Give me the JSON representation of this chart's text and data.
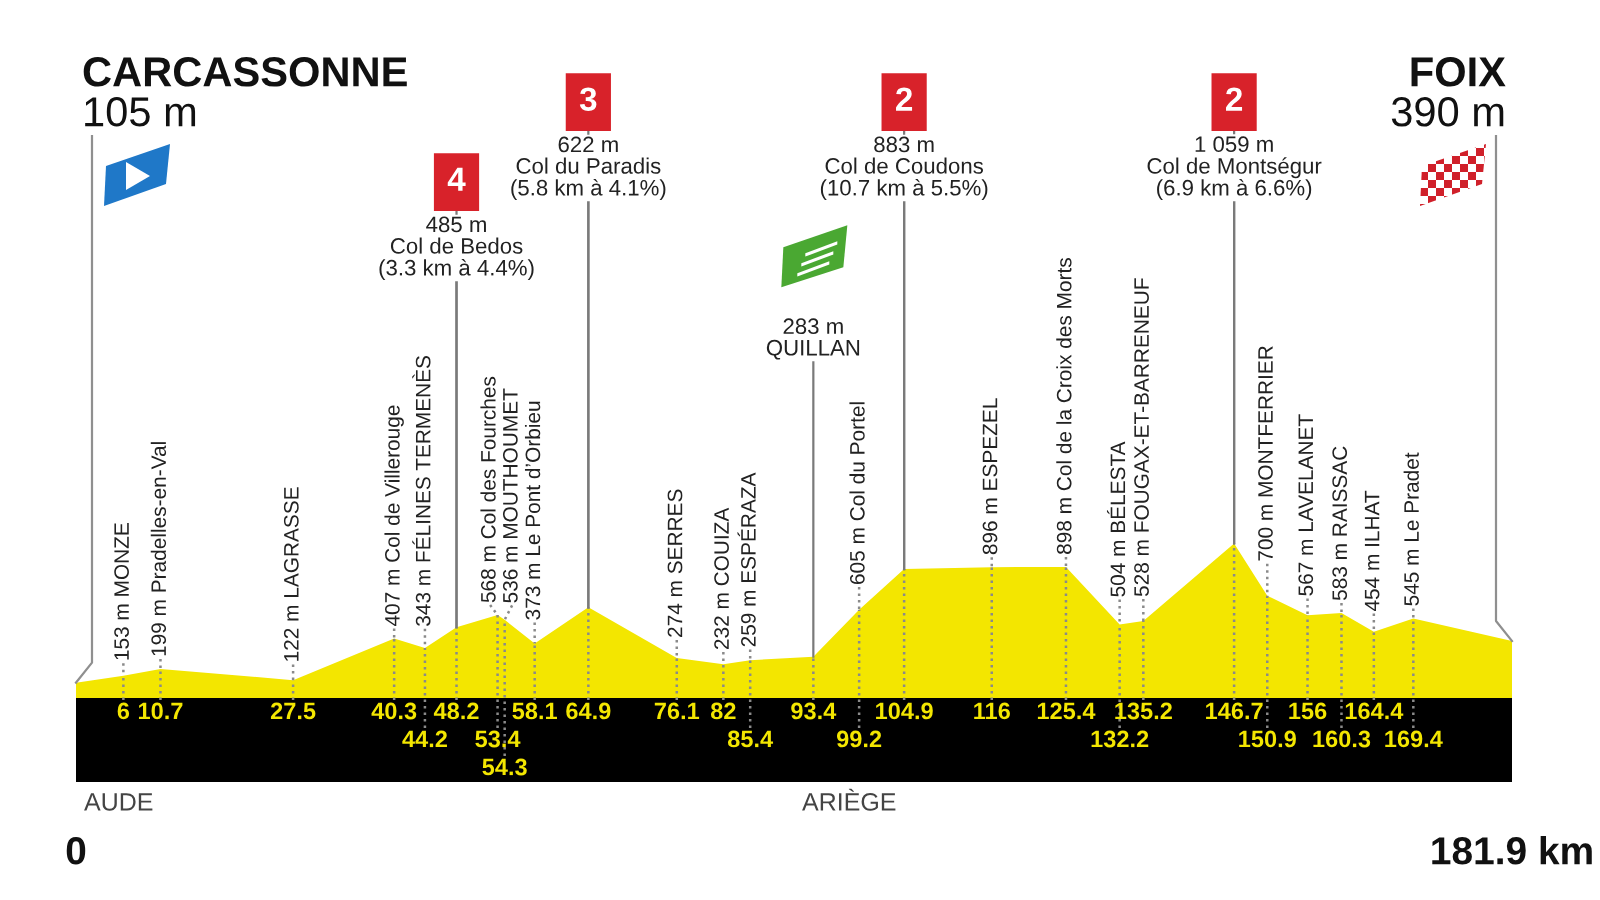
{
  "chart_data": {
    "type": "area",
    "color": "#f3e600",
    "x": [
      0,
      6,
      10.7,
      27.5,
      40.3,
      44.2,
      48.2,
      53.4,
      54.3,
      58.1,
      64.9,
      76.1,
      82,
      85.4,
      93.4,
      99.2,
      104.9,
      116,
      125.4,
      132.2,
      135.2,
      146.7,
      150.9,
      156,
      160.3,
      164.4,
      169.4,
      181.9
    ],
    "values": [
      105,
      153,
      199,
      122,
      407,
      343,
      485,
      568,
      536,
      373,
      622,
      274,
      232,
      259,
      283,
      605,
      883,
      896,
      898,
      504,
      528,
      1059,
      700,
      567,
      583,
      454,
      545,
      390
    ],
    "value_labels": [
      null,
      "153 m MONZE",
      "199 m Pradelles-en-Val",
      "122 m LAGRASSE",
      "407 m Col de Villerouge",
      "343 m FÉLINES TERMENÈS",
      null,
      "568 m Col des Fourches",
      "536 m MOUTHOUMET",
      "373 m Le Pont d’Orbieu",
      null,
      "274 m SERRES",
      "232 m COUIZA",
      "259 m ESPÉRAZA",
      null,
      "605 m Col du Portel",
      null,
      "896 m ESPEZEL",
      "898 m Col de la Croix des Morts",
      "504 m BÉLESTA",
      "528 m FOUGAX-ET-BARRENEUF",
      null,
      "700 m MONTFERRIER",
      "567 m LAVELANET",
      "583 m RAISSAC",
      "454 m ILHAT",
      "545 m Le Pradet",
      null
    ],
    "xlim": [
      0,
      181.9
    ],
    "xticks": [
      0,
      {
        "value": 181.9,
        "label": "181.9 km"
      }
    ],
    "tick_labels": "x",
    "annotations": [
      "CARCASSONNE",
      "FOIX",
      "AUDE",
      "ARIÈGE",
      {
        "text": "105 m",
        "x": 0,
        "y": 105
      },
      {
        "text": "390 m",
        "x": 181.9,
        "y": 390
      },
      {
        "text": "6",
        "x": 6,
        "y": 153
      },
      {
        "text": "10.7",
        "x": 10.7,
        "y": 199
      },
      {
        "text": "27.5",
        "x": 27.5,
        "y": 122
      },
      {
        "text": "40.3",
        "x": 40.3,
        "y": 407
      },
      {
        "text": "44.2",
        "x": 44.2,
        "y": 343
      },
      {
        "text": "48.2",
        "x": 48.2,
        "y": 485
      },
      {
        "text": "53.4",
        "x": 53.4,
        "y": 568
      },
      {
        "text": "54.3",
        "x": 54.3,
        "y": 536
      },
      {
        "text": "58.1",
        "x": 58.1,
        "y": 373
      },
      {
        "text": "64.9",
        "x": 64.9,
        "y": 622
      },
      {
        "text": "76.1",
        "x": 76.1,
        "y": 274
      },
      {
        "text": "82",
        "x": 82,
        "y": 232
      },
      {
        "text": "85.4",
        "x": 85.4,
        "y": 259
      },
      {
        "text": "93.4",
        "x": 93.4,
        "y": 283
      },
      {
        "text": "99.2",
        "x": 99.2,
        "y": 605
      },
      {
        "text": "104.9",
        "x": 104.9,
        "y": 883
      },
      {
        "text": "116",
        "x": 116,
        "y": 896
      },
      {
        "text": "125.4",
        "x": 125.4,
        "y": 898
      },
      {
        "text": "132.2",
        "x": 132.2,
        "y": 504
      },
      {
        "text": "135.2",
        "x": 135.2,
        "y": 528
      },
      {
        "text": "146.7",
        "x": 146.7,
        "y": 1059
      },
      {
        "text": "150.9",
        "x": 150.9,
        "y": 700
      },
      {
        "text": "156",
        "x": 156,
        "y": 567
      },
      {
        "text": "160.3",
        "x": 160.3,
        "y": 583
      },
      {
        "text": "164.4",
        "x": 164.4,
        "y": 454
      },
      {
        "text": "169.4",
        "x": 169.4,
        "y": 545
      },
      {
        "text": "4",
        "x": 48.2,
        "y": 485
      },
      {
        "text": "485 m\nCol de Bedos\n(3.3 km à 4.4%)",
        "x": 48.2,
        "y": 485
      },
      {
        "text": "3",
        "x": 64.9,
        "y": 622
      },
      {
        "text": "622 m\nCol du Paradis\n(5.8 km à 4.1%)",
        "x": 64.9,
        "y": 622
      },
      {
        "text": "283 m\nQUILLAN",
        "x": 93.4,
        "y": 283
      },
      {
        "text": "2",
        "x": 104.9,
        "y": 883
      },
      {
        "text": "883 m\nCol de Coudons\n(10.7 km à 5.5%)",
        "x": 104.9,
        "y": 883
      },
      {
        "text": "2",
        "x": 146.7,
        "y": 1059
      },
      {
        "text": "1 059 m\nCol de Montségur\n(6.9 km à 6.6%)",
        "x": 146.7,
        "y": 1059
      }
    ]
  }
}
